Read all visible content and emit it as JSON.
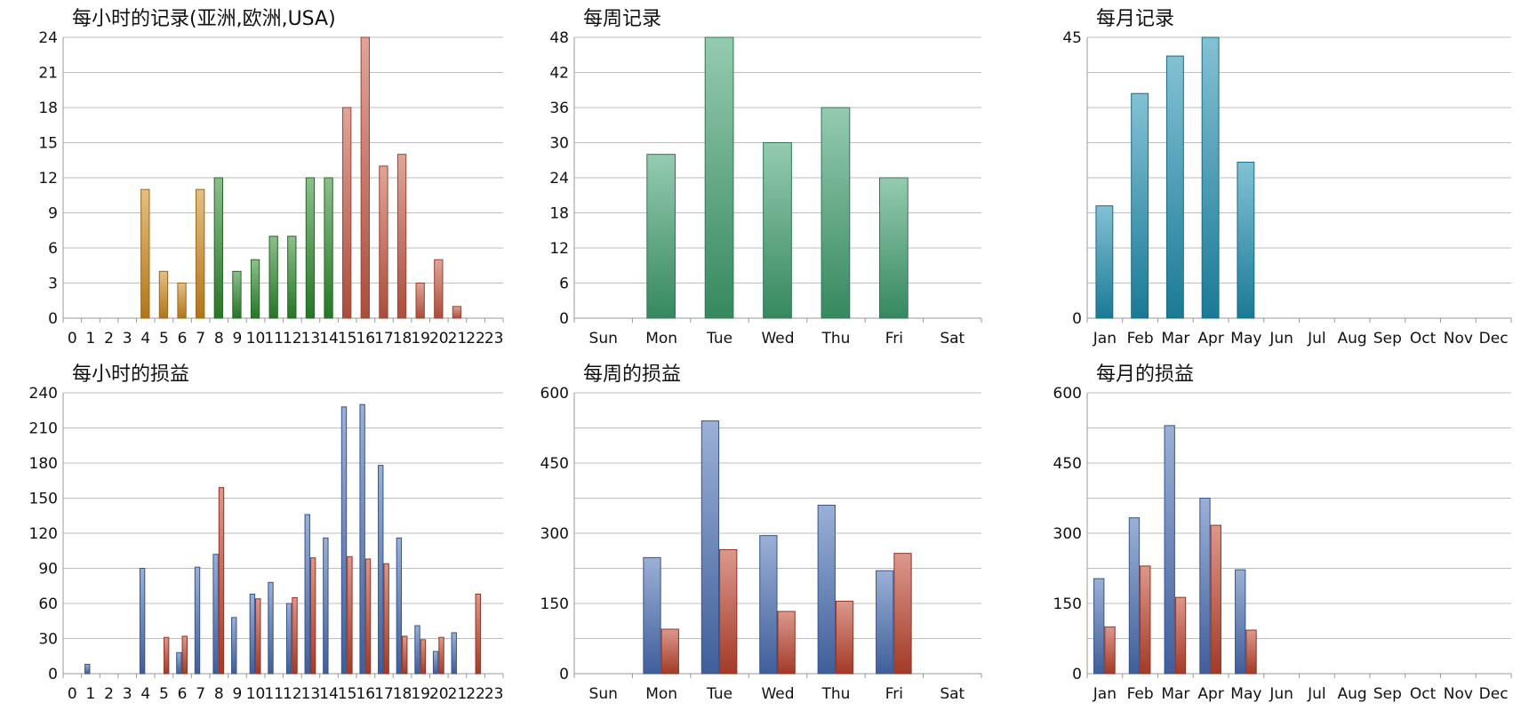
{
  "chart_data": [
    {
      "type": "bar",
      "title": "每小时的记录(亚洲,欧洲,USA)",
      "categories": [
        "0",
        "1",
        "2",
        "3",
        "4",
        "5",
        "6",
        "7",
        "8",
        "9",
        "10",
        "11",
        "12",
        "13",
        "14",
        "15",
        "16",
        "17",
        "18",
        "19",
        "20",
        "21",
        "22",
        "23"
      ],
      "values": [
        0,
        0,
        0,
        0,
        11,
        4,
        3,
        11,
        12,
        4,
        5,
        7,
        7,
        12,
        12,
        18,
        24,
        13,
        14,
        3,
        5,
        1,
        0,
        0
      ],
      "bar_colors": [
        "#d08a1e",
        "#d08a1e",
        "#d08a1e",
        "#d08a1e",
        "#d08a1e",
        "#d08a1e",
        "#d08a1e",
        "#d08a1e",
        "#2e8a2e",
        "#2e8a2e",
        "#2e8a2e",
        "#2e8a2e",
        "#2e8a2e",
        "#2e8a2e",
        "#2e8a2e",
        "#c95a45",
        "#c95a45",
        "#c95a45",
        "#c95a45",
        "#c95a45",
        "#c95a45",
        "#c95a45",
        "#c95a45",
        "#c95a45"
      ],
      "ylim": [
        0,
        24
      ],
      "yticks": [
        0,
        3,
        6,
        9,
        12,
        15,
        18,
        21,
        24
      ],
      "grid": true
    },
    {
      "type": "bar",
      "title": "每周记录",
      "categories": [
        "Sun",
        "Mon",
        "Tue",
        "Wed",
        "Thu",
        "Fri",
        "Sat"
      ],
      "values": [
        0,
        28,
        48,
        30,
        36,
        24,
        0
      ],
      "color": "#3fa070",
      "ylim": [
        0,
        48
      ],
      "yticks": [
        0,
        6,
        12,
        18,
        24,
        30,
        36,
        42,
        48
      ],
      "grid": true
    },
    {
      "type": "bar",
      "title": "每月记录",
      "categories": [
        "Jan",
        "Feb",
        "Mar",
        "Apr",
        "May",
        "Jun",
        "Jul",
        "Aug",
        "Sep",
        "Oct",
        "Nov",
        "Dec"
      ],
      "values": [
        18,
        36,
        42,
        45,
        25,
        0,
        0,
        0,
        0,
        0,
        0,
        0
      ],
      "color": "#1f8fb0",
      "ylim": [
        0,
        45
      ],
      "yticks": [
        0,
        45
      ],
      "gridlines": [
        0,
        5.625,
        11.25,
        16.875,
        22.5,
        28.125,
        33.75,
        39.375,
        45
      ],
      "grid": true
    },
    {
      "type": "bar",
      "title": "每小时的损益",
      "categories": [
        "0",
        "1",
        "2",
        "3",
        "4",
        "5",
        "6",
        "7",
        "8",
        "9",
        "10",
        "11",
        "12",
        "13",
        "14",
        "15",
        "16",
        "17",
        "18",
        "19",
        "20",
        "21",
        "22",
        "23"
      ],
      "series": [
        {
          "color": "#4a6fb5",
          "values": [
            0,
            8,
            0,
            0,
            90,
            0,
            18,
            91,
            102,
            48,
            68,
            78,
            60,
            136,
            116,
            228,
            230,
            178,
            116,
            41,
            19,
            35,
            0,
            0
          ]
        },
        {
          "color": "#c0442e",
          "values": [
            0,
            0,
            0,
            0,
            0,
            31,
            32,
            0,
            159,
            0,
            64,
            0,
            65,
            99,
            0,
            100,
            98,
            94,
            32,
            29,
            31,
            0,
            68,
            0
          ]
        }
      ],
      "ylim": [
        0,
        240
      ],
      "yticks": [
        0,
        30,
        60,
        90,
        120,
        150,
        180,
        210,
        240
      ],
      "grid": true
    },
    {
      "type": "bar",
      "title": "每周的损益",
      "categories": [
        "Sun",
        "Mon",
        "Tue",
        "Wed",
        "Thu",
        "Fri",
        "Sat"
      ],
      "series": [
        {
          "color": "#4a6fb5",
          "values": [
            0,
            248,
            540,
            295,
            360,
            220,
            0
          ]
        },
        {
          "color": "#c0442e",
          "values": [
            0,
            95,
            265,
            133,
            155,
            257,
            0
          ]
        }
      ],
      "ylim": [
        0,
        600
      ],
      "yticks": [
        0,
        150,
        300,
        450,
        600
      ],
      "gridlines": [
        0,
        75,
        150,
        225,
        300,
        375,
        450,
        525,
        600
      ],
      "grid": true
    },
    {
      "type": "bar",
      "title": "每月的损益",
      "categories": [
        "Jan",
        "Feb",
        "Mar",
        "Apr",
        "May",
        "Jun",
        "Jul",
        "Aug",
        "Sep",
        "Oct",
        "Nov",
        "Dec"
      ],
      "series": [
        {
          "color": "#4a6fb5",
          "values": [
            203,
            333,
            530,
            375,
            222,
            0,
            0,
            0,
            0,
            0,
            0,
            0
          ]
        },
        {
          "color": "#c0442e",
          "values": [
            100,
            230,
            163,
            317,
            93,
            0,
            0,
            0,
            0,
            0,
            0,
            0
          ]
        }
      ],
      "ylim": [
        0,
        600
      ],
      "yticks": [
        0,
        150,
        300,
        450,
        600
      ],
      "gridlines": [
        0,
        75,
        150,
        225,
        300,
        375,
        450,
        525,
        600
      ],
      "grid": true
    }
  ]
}
